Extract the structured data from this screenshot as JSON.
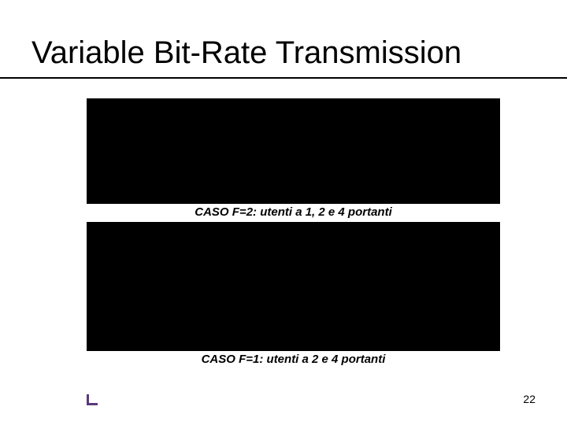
{
  "title": "Variable Bit-Rate Transmission",
  "box1": {
    "background": "#000000"
  },
  "caption1": "CASO F=2: utenti a 1, 2 e 4 portanti",
  "box2": {
    "background": "#000000"
  },
  "caption2": "CASO F=1: utenti a 2 e 4 portanti",
  "page_number": "22",
  "colors": {
    "text": "#000000",
    "accent": "#5a3a7a",
    "background": "#ffffff"
  },
  "typography": {
    "title_fontsize": 40,
    "caption_fontsize": 15,
    "page_fontsize": 14
  }
}
